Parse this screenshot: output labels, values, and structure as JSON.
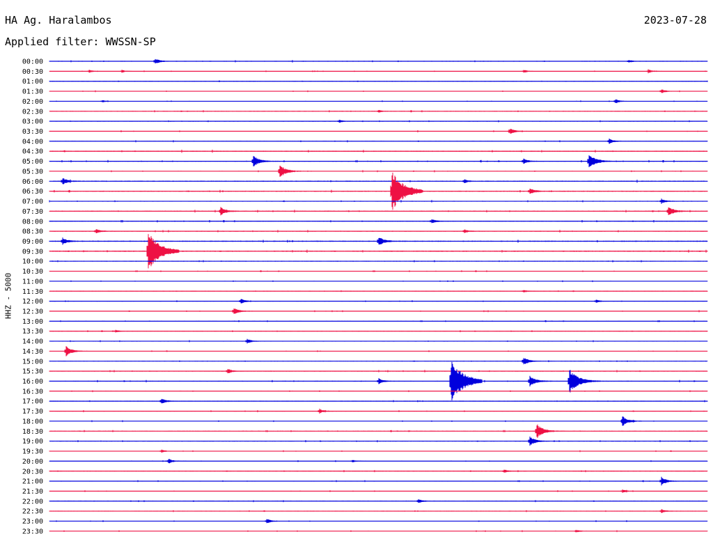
{
  "header": {
    "station": "HA Ag. Haralambos",
    "date": "2023-07-28",
    "filter_label": "Applied filter: WWSSN-SP"
  },
  "chart_data": {
    "type": "line",
    "ylabel": "HHZ - 5000",
    "colors": {
      "odd_rows": "#0000dd",
      "even_rows": "#ee1144"
    },
    "grid": false,
    "traces": [
      {
        "time": "00:00",
        "noise": 0.4,
        "events": [
          {
            "x": 0.16,
            "a": 0.6
          },
          {
            "x": 0.88,
            "a": 0.25
          }
        ]
      },
      {
        "time": "00:30",
        "noise": 0.25,
        "events": [
          {
            "x": 0.06,
            "a": 0.3
          },
          {
            "x": 0.11,
            "a": 0.3
          },
          {
            "x": 0.72,
            "a": 0.35
          },
          {
            "x": 0.91,
            "a": 0.4
          }
        ]
      },
      {
        "time": "01:00",
        "noise": 0.3,
        "events": []
      },
      {
        "time": "01:30",
        "noise": 0.3,
        "events": [
          {
            "x": 0.93,
            "a": 0.4
          }
        ]
      },
      {
        "time": "02:00",
        "noise": 0.25,
        "events": [
          {
            "x": 0.08,
            "a": 0.25
          },
          {
            "x": 0.86,
            "a": 0.5
          }
        ]
      },
      {
        "time": "02:30",
        "noise": 0.35,
        "events": [
          {
            "x": 0.5,
            "a": 0.25
          }
        ]
      },
      {
        "time": "03:00",
        "noise": 0.35,
        "events": [
          {
            "x": 0.44,
            "a": 0.3
          }
        ]
      },
      {
        "time": "03:30",
        "noise": 0.35,
        "events": [
          {
            "x": 0.7,
            "a": 0.7
          }
        ]
      },
      {
        "time": "04:00",
        "noise": 0.35,
        "events": [
          {
            "x": 0.85,
            "a": 0.6
          }
        ]
      },
      {
        "time": "04:30",
        "noise": 0.5,
        "events": []
      },
      {
        "time": "05:00",
        "noise": 0.4,
        "events": [
          {
            "x": 0.31,
            "a": 1.2
          },
          {
            "x": 0.72,
            "a": 0.6
          },
          {
            "x": 0.82,
            "a": 1.6
          }
        ]
      },
      {
        "time": "05:30",
        "noise": 0.35,
        "events": [
          {
            "x": 0.35,
            "a": 1.4
          }
        ]
      },
      {
        "time": "06:00",
        "noise": 0.5,
        "events": [
          {
            "x": 0.02,
            "a": 0.7
          },
          {
            "x": 0.63,
            "a": 0.4
          }
        ]
      },
      {
        "time": "06:30",
        "noise": 0.5,
        "events": [
          {
            "x": 0.52,
            "a": 4.2
          },
          {
            "x": 0.73,
            "a": 0.7
          }
        ]
      },
      {
        "time": "07:00",
        "noise": 0.4,
        "events": [
          {
            "x": 0.93,
            "a": 0.5
          }
        ]
      },
      {
        "time": "07:30",
        "noise": 0.45,
        "events": [
          {
            "x": 0.26,
            "a": 0.9
          },
          {
            "x": 0.94,
            "a": 1.1
          }
        ]
      },
      {
        "time": "08:00",
        "noise": 0.4,
        "events": [
          {
            "x": 0.58,
            "a": 0.5
          }
        ]
      },
      {
        "time": "08:30",
        "noise": 0.45,
        "events": [
          {
            "x": 0.07,
            "a": 0.5
          },
          {
            "x": 0.63,
            "a": 0.4
          }
        ]
      },
      {
        "time": "09:00",
        "noise": 0.5,
        "events": [
          {
            "x": 0.02,
            "a": 0.7
          },
          {
            "x": 0.5,
            "a": 1.0
          }
        ]
      },
      {
        "time": "09:30",
        "noise": 0.55,
        "events": [
          {
            "x": 0.15,
            "a": 4.0
          }
        ]
      },
      {
        "time": "10:00",
        "noise": 0.35,
        "events": []
      },
      {
        "time": "10:30",
        "noise": 0.3,
        "events": []
      },
      {
        "time": "11:00",
        "noise": 0.3,
        "events": []
      },
      {
        "time": "11:30",
        "noise": 0.3,
        "events": [
          {
            "x": 0.72,
            "a": 0.3
          }
        ]
      },
      {
        "time": "12:00",
        "noise": 0.3,
        "events": [
          {
            "x": 0.29,
            "a": 0.6
          },
          {
            "x": 0.83,
            "a": 0.4
          }
        ]
      },
      {
        "time": "12:30",
        "noise": 0.35,
        "events": [
          {
            "x": 0.28,
            "a": 0.8
          }
        ]
      },
      {
        "time": "13:00",
        "noise": 0.3,
        "events": []
      },
      {
        "time": "13:30",
        "noise": 0.3,
        "events": [
          {
            "x": 0.1,
            "a": 0.3
          }
        ]
      },
      {
        "time": "14:00",
        "noise": 0.35,
        "events": [
          {
            "x": 0.3,
            "a": 0.5
          }
        ]
      },
      {
        "time": "14:30",
        "noise": 0.3,
        "events": [
          {
            "x": 0.025,
            "a": 1.1
          }
        ]
      },
      {
        "time": "15:00",
        "noise": 0.3,
        "events": [
          {
            "x": 0.72,
            "a": 0.9
          }
        ]
      },
      {
        "time": "15:30",
        "noise": 0.4,
        "events": [
          {
            "x": 0.27,
            "a": 0.6
          }
        ]
      },
      {
        "time": "16:00",
        "noise": 0.4,
        "events": [
          {
            "x": 0.5,
            "a": 0.6
          },
          {
            "x": 0.61,
            "a": 4.5
          },
          {
            "x": 0.73,
            "a": 1.2
          },
          {
            "x": 0.79,
            "a": 2.6
          }
        ]
      },
      {
        "time": "16:30",
        "noise": 0.3,
        "events": []
      },
      {
        "time": "17:00",
        "noise": 0.35,
        "events": [
          {
            "x": 0.17,
            "a": 0.6
          }
        ]
      },
      {
        "time": "17:30",
        "noise": 0.35,
        "events": [
          {
            "x": 0.41,
            "a": 0.5
          }
        ]
      },
      {
        "time": "18:00",
        "noise": 0.3,
        "events": [
          {
            "x": 0.87,
            "a": 1.2
          }
        ]
      },
      {
        "time": "18:30",
        "noise": 0.35,
        "events": [
          {
            "x": 0.74,
            "a": 1.6
          }
        ]
      },
      {
        "time": "19:00",
        "noise": 0.35,
        "events": [
          {
            "x": 0.73,
            "a": 1.0
          }
        ]
      },
      {
        "time": "19:30",
        "noise": 0.3,
        "events": [
          {
            "x": 0.17,
            "a": 0.3
          }
        ]
      },
      {
        "time": "20:00",
        "noise": 0.3,
        "events": [
          {
            "x": 0.18,
            "a": 0.6
          },
          {
            "x": 0.46,
            "a": 0.3
          }
        ]
      },
      {
        "time": "20:30",
        "noise": 0.35,
        "events": [
          {
            "x": 0.69,
            "a": 0.4
          }
        ]
      },
      {
        "time": "21:00",
        "noise": 0.3,
        "events": [
          {
            "x": 0.93,
            "a": 0.9
          }
        ]
      },
      {
        "time": "21:30",
        "noise": 0.3,
        "events": [
          {
            "x": 0.87,
            "a": 0.4
          }
        ]
      },
      {
        "time": "22:00",
        "noise": 0.35,
        "events": [
          {
            "x": 0.56,
            "a": 0.5
          }
        ]
      },
      {
        "time": "22:30",
        "noise": 0.3,
        "events": [
          {
            "x": 0.93,
            "a": 0.4
          }
        ]
      },
      {
        "time": "23:00",
        "noise": 0.3,
        "events": [
          {
            "x": 0.33,
            "a": 0.6
          }
        ]
      },
      {
        "time": "23:30",
        "noise": 0.3,
        "events": [
          {
            "x": 0.8,
            "a": 0.3
          }
        ]
      }
    ]
  }
}
